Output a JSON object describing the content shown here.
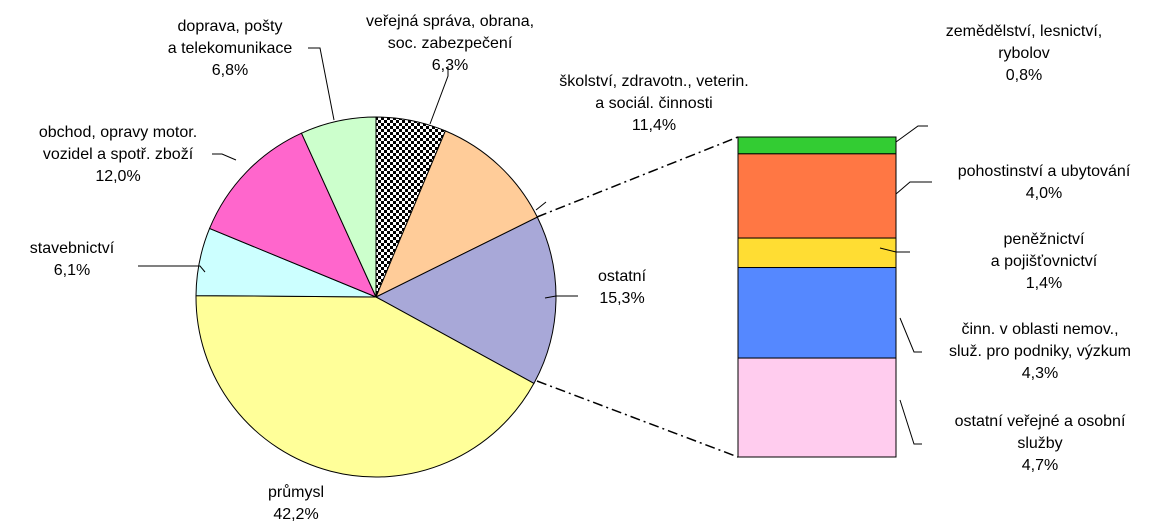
{
  "chart_data": [
    {
      "type": "pie",
      "categories": [
        [
          "veřejná správa, obrana,",
          "soc. zabezpečení"
        ],
        [
          "školství, zdravotn., veterin.",
          "a sociál. činnosti"
        ],
        [
          "ostatní"
        ],
        [
          "průmysl"
        ],
        [
          "stavebnictví"
        ],
        [
          "obchod, opravy motor.",
          "vozidel a spotř. zboží"
        ],
        [
          "doprava, pošty",
          "a telekomunikace"
        ]
      ],
      "values": [
        6.3,
        11.4,
        15.3,
        42.2,
        6.1,
        12.0,
        6.8
      ],
      "value_labels": [
        "6,3%",
        "11,4%",
        "15,3%",
        "42,2%",
        "6,1%",
        "12,0%",
        "6,8%"
      ],
      "colors": [
        "#bbbbbb",
        "#ffcc99",
        "#a8a8d8",
        "#ffff99",
        "#ccffff",
        "#ff66cc",
        "#ccffcc"
      ]
    },
    {
      "type": "bar",
      "categories": [
        [
          "zemědělství, lesnictví,",
          "rybolov"
        ],
        [
          "pohostinství a ubytování"
        ],
        [
          "peněžnictví",
          "a pojišťovnictví"
        ],
        [
          "činn. v oblasti nemov.,",
          "služ. pro podniky, výzkum"
        ],
        [
          "ostatní veřejné a osobní",
          "služby"
        ]
      ],
      "values": [
        0.8,
        4.0,
        1.4,
        4.3,
        4.7
      ],
      "value_labels": [
        "0,8%",
        "4,0%",
        "1,4%",
        "4,3%",
        "4,7%"
      ],
      "colors": [
        "#33cc33",
        "#ff7744",
        "#ffdd33",
        "#5588ff",
        "#ffccee"
      ]
    }
  ]
}
